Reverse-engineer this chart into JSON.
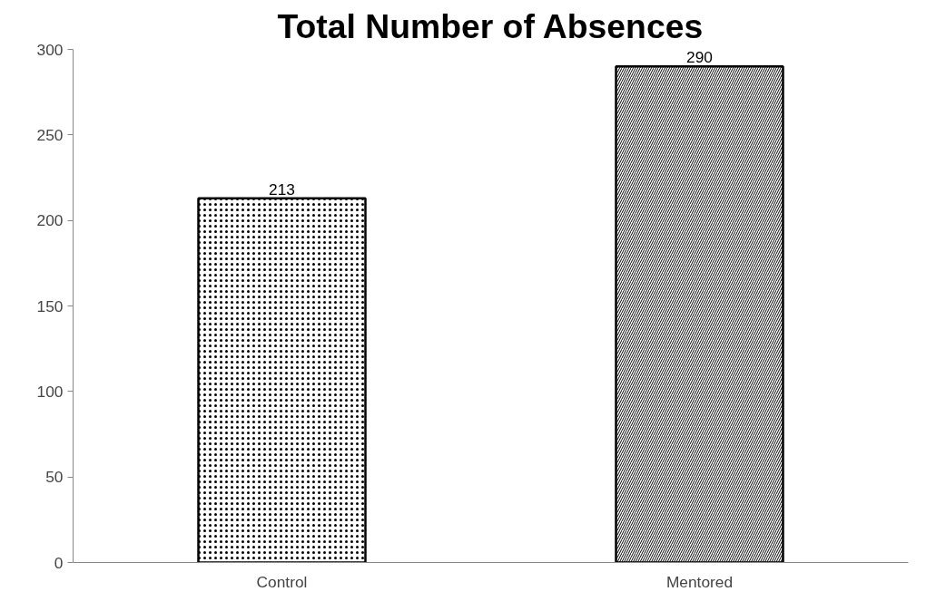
{
  "chart_data": {
    "type": "bar",
    "title": "Total Number of Absences",
    "categories": [
      "Control",
      "Mentored"
    ],
    "values": [
      213,
      290
    ],
    "colors": [
      "#000000",
      "#000000"
    ],
    "ylim": [
      0,
      300
    ],
    "yticks": [
      0,
      50,
      100,
      150,
      200,
      250,
      300
    ],
    "grid": false,
    "data_labels": true
  }
}
